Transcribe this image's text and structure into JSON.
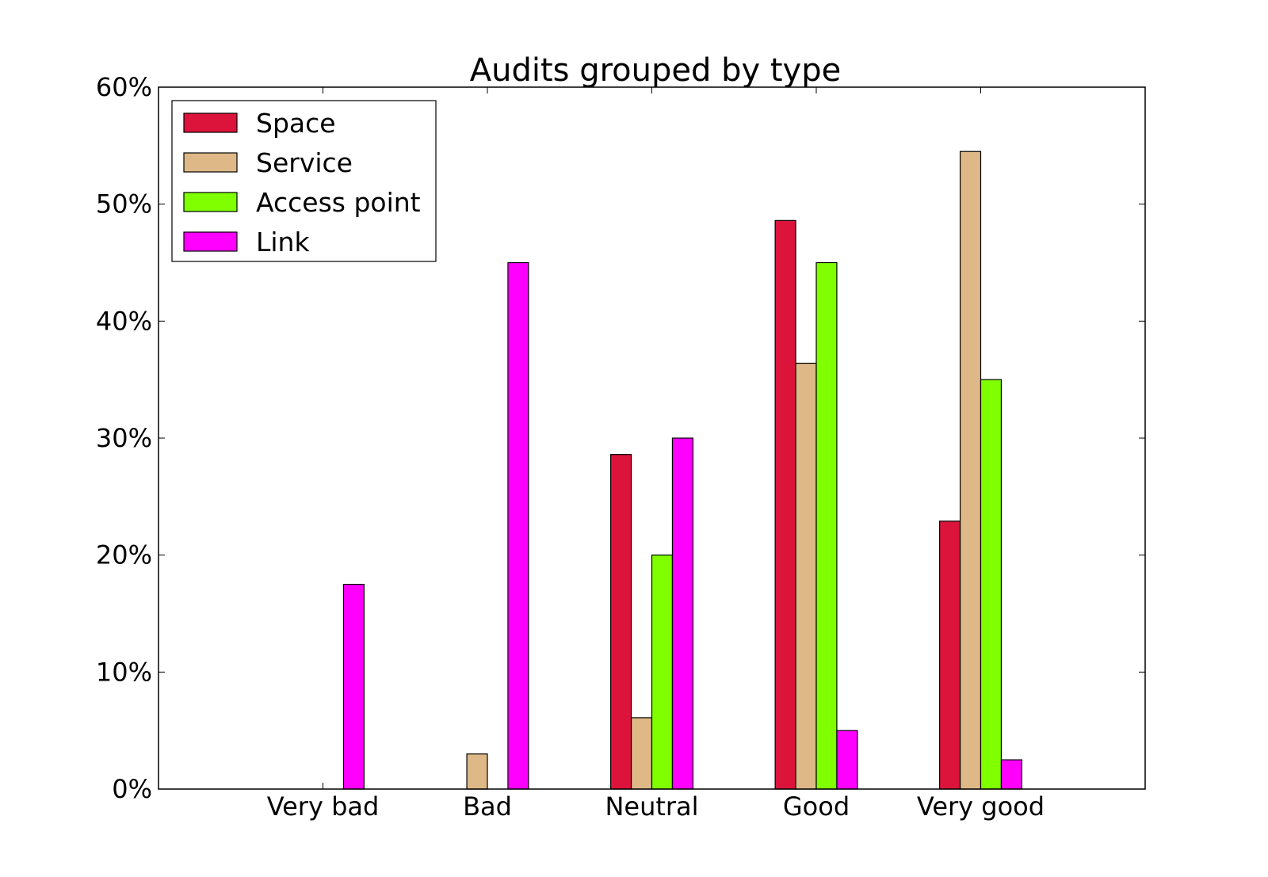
{
  "chart_data": {
    "type": "bar",
    "title": "Audits grouped by type",
    "xlabel": "",
    "ylabel": "",
    "categories": [
      "Very bad",
      "Bad",
      "Neutral",
      "Good",
      "Very good"
    ],
    "y_tick_labels": [
      "0%",
      "10%",
      "20%",
      "30%",
      "40%",
      "50%",
      "60%"
    ],
    "ylim": [
      0,
      60
    ],
    "x_range": [
      -1,
      5
    ],
    "grid": false,
    "legend_position": "top-left",
    "series": [
      {
        "name": "Space",
        "color": "#DC143C",
        "values": [
          0,
          0,
          28.6,
          48.6,
          22.9
        ]
      },
      {
        "name": "Service",
        "color": "#DEB887",
        "values": [
          0,
          3.0,
          6.1,
          36.4,
          54.5
        ]
      },
      {
        "name": "Access point",
        "color": "#7FFF00",
        "values": [
          0,
          0,
          20.0,
          45.0,
          35.0
        ]
      },
      {
        "name": "Link",
        "color": "#FF00FF",
        "values": [
          17.5,
          45.0,
          30.0,
          5.0,
          2.5
        ]
      }
    ]
  }
}
